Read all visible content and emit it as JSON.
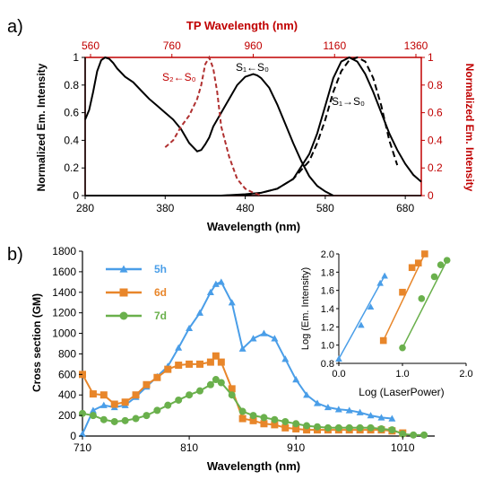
{
  "chart_data": [
    {
      "type": "line",
      "panel_label": "a)",
      "xlabel": "Wavelength (nm)",
      "xlim": [
        280,
        700
      ],
      "xticks": [
        "280",
        "380",
        "480",
        "580",
        "680"
      ],
      "ylabel_left": "Normalized Em. Intensity",
      "ylim_left": [
        0,
        1
      ],
      "yticks_left": [
        "0",
        "0.2",
        "0.4",
        "0.6",
        "0.8",
        "1"
      ],
      "top_axis_label": "TP Wavelength (nm)",
      "top_axis_ticks": [
        "560",
        "760",
        "960",
        "1160",
        "1360"
      ],
      "ylabel_right": "Normalized Em. Intensity",
      "yticks_right": [
        "0",
        "0.2",
        "0.4",
        "0.6",
        "0.8",
        "1"
      ],
      "annotations": {
        "s2": "S₂←S₀",
        "s1abs": "S₁←S₀",
        "s1em": "S₁→S₀"
      },
      "colors": {
        "black": "#000000",
        "red": "#c00000",
        "red_dashed": "#b03030"
      },
      "series": [
        {
          "style": "solid-black",
          "x": [
            280,
            285,
            290,
            295,
            300,
            305,
            310,
            315,
            320,
            330,
            340,
            350,
            360,
            370,
            380,
            390,
            400,
            410,
            420,
            425,
            430,
            435,
            440,
            450,
            460,
            470,
            480,
            490,
            495,
            500,
            510,
            520,
            530,
            540,
            550,
            560,
            570,
            580,
            590
          ],
          "y": [
            0.55,
            0.62,
            0.75,
            0.9,
            0.98,
            1.0,
            0.99,
            0.96,
            0.92,
            0.86,
            0.82,
            0.76,
            0.7,
            0.65,
            0.6,
            0.55,
            0.48,
            0.38,
            0.32,
            0.33,
            0.37,
            0.42,
            0.5,
            0.6,
            0.7,
            0.8,
            0.86,
            0.88,
            0.87,
            0.85,
            0.78,
            0.66,
            0.52,
            0.38,
            0.25,
            0.14,
            0.07,
            0.03,
            0.0
          ]
        },
        {
          "style": "solid-black",
          "x": [
            280,
            400,
            450,
            480,
            500,
            520,
            540,
            560,
            570,
            580,
            590,
            600,
            610,
            620,
            630,
            640,
            650,
            660,
            670,
            680,
            690,
            700
          ],
          "y": [
            0.0,
            0.0,
            0.0,
            0.01,
            0.02,
            0.05,
            0.12,
            0.3,
            0.45,
            0.65,
            0.85,
            0.97,
            1.0,
            0.97,
            0.88,
            0.75,
            0.6,
            0.45,
            0.33,
            0.23,
            0.15,
            0.1
          ]
        },
        {
          "style": "dashed-black",
          "x": [
            480,
            500,
            520,
            540,
            560,
            570,
            580,
            590,
            600,
            610,
            620,
            630,
            640,
            650,
            660,
            670
          ],
          "y": [
            0.0,
            0.02,
            0.05,
            0.12,
            0.25,
            0.38,
            0.55,
            0.75,
            0.9,
            0.98,
            1.0,
            0.97,
            0.85,
            0.65,
            0.4,
            0.22
          ]
        },
        {
          "style": "dashed-red",
          "x": [
            380,
            390,
            400,
            410,
            420,
            425,
            430,
            435,
            440,
            445,
            450,
            460,
            470,
            480,
            490,
            500
          ],
          "y": [
            0.35,
            0.4,
            0.5,
            0.58,
            0.7,
            0.8,
            0.95,
            1.0,
            0.92,
            0.75,
            0.5,
            0.28,
            0.12,
            0.05,
            0.02,
            0.0
          ]
        }
      ]
    },
    {
      "type": "line",
      "panel_label": "b)",
      "xlabel": "Wavelength (nm)",
      "ylabel": "Cross section (GM)",
      "xlim": [
        710,
        1040
      ],
      "ylim": [
        0,
        1800
      ],
      "xticks": [
        "710",
        "810",
        "910",
        "1010"
      ],
      "yticks": [
        "0",
        "200",
        "400",
        "600",
        "800",
        "1000",
        "1200",
        "1400",
        "1600",
        "1800"
      ],
      "series": [
        {
          "name": "5h",
          "color": "#4a9ee8",
          "marker": "triangle",
          "x": [
            710,
            720,
            730,
            740,
            750,
            760,
            770,
            780,
            790,
            800,
            810,
            820,
            830,
            835,
            840,
            850,
            860,
            870,
            880,
            890,
            900,
            910,
            920,
            930,
            940,
            950,
            960,
            970,
            980,
            990,
            1000
          ],
          "y": [
            20,
            250,
            300,
            280,
            300,
            380,
            480,
            580,
            680,
            860,
            1050,
            1200,
            1400,
            1480,
            1500,
            1300,
            850,
            950,
            1000,
            950,
            750,
            550,
            400,
            320,
            280,
            260,
            250,
            230,
            200,
            180,
            170
          ]
        },
        {
          "name": "6d",
          "color": "#e8862a",
          "marker": "square",
          "x": [
            710,
            720,
            730,
            740,
            750,
            760,
            770,
            780,
            790,
            800,
            810,
            820,
            830,
            835,
            840,
            850,
            860,
            870,
            880,
            890,
            900,
            910,
            920,
            930,
            940,
            950,
            960,
            970,
            980,
            990,
            1000,
            1010
          ],
          "y": [
            600,
            410,
            400,
            310,
            330,
            400,
            500,
            570,
            650,
            690,
            700,
            700,
            720,
            780,
            720,
            460,
            170,
            150,
            120,
            110,
            80,
            70,
            60,
            60,
            60,
            60,
            60,
            60,
            60,
            60,
            50,
            30
          ]
        },
        {
          "name": "7d",
          "color": "#6ab04c",
          "marker": "circle",
          "x": [
            710,
            720,
            730,
            740,
            750,
            760,
            770,
            780,
            790,
            800,
            810,
            820,
            830,
            835,
            840,
            850,
            860,
            870,
            880,
            890,
            900,
            910,
            920,
            930,
            940,
            950,
            960,
            970,
            980,
            990,
            1000,
            1010,
            1020,
            1030
          ],
          "y": [
            220,
            200,
            160,
            140,
            150,
            170,
            200,
            250,
            300,
            350,
            400,
            440,
            500,
            550,
            520,
            400,
            240,
            200,
            180,
            160,
            140,
            120,
            100,
            90,
            80,
            80,
            80,
            80,
            80,
            70,
            60,
            20,
            10,
            10
          ]
        }
      ]
    },
    {
      "type": "scatter",
      "inset_of": "b)",
      "xlabel": "Log (LaserPower)",
      "ylabel": "Log (Em. Intensity)",
      "xlim": [
        0,
        2
      ],
      "ylim": [
        0.8,
        2.0
      ],
      "xticks": [
        "0.0",
        "1.0",
        "2.0"
      ],
      "yticks": [
        "0.8",
        "1.0",
        "1.2",
        "1.4",
        "1.6",
        "1.8",
        "2.0"
      ],
      "series": [
        {
          "color": "#4a9ee8",
          "marker": "triangle",
          "x": [
            0.0,
            0.35,
            0.5,
            0.65,
            0.72
          ],
          "y": [
            0.85,
            1.22,
            1.42,
            1.68,
            1.76
          ]
        },
        {
          "color": "#e8862a",
          "marker": "square",
          "x": [
            0.7,
            1.0,
            1.15,
            1.25,
            1.35
          ],
          "y": [
            1.05,
            1.58,
            1.85,
            1.9,
            2.0
          ]
        },
        {
          "color": "#6ab04c",
          "marker": "circle",
          "x": [
            1.0,
            1.3,
            1.5,
            1.6,
            1.7
          ],
          "y": [
            0.97,
            1.51,
            1.75,
            1.88,
            1.93
          ]
        }
      ]
    }
  ]
}
